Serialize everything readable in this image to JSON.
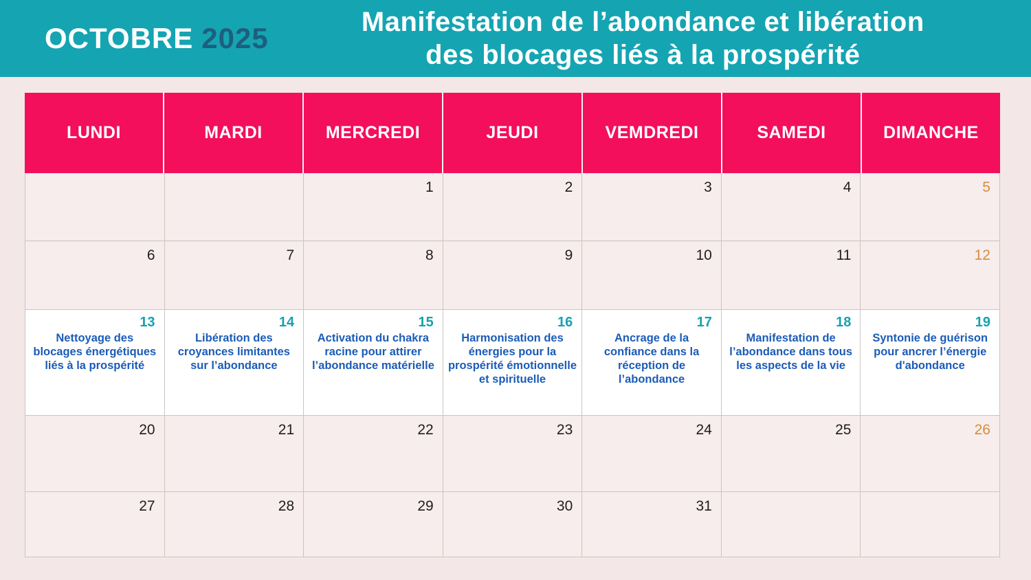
{
  "colors": {
    "banner_teal": "#15a4b2",
    "year_dark_blue": "#1d5f7e",
    "weekday_pink": "#f30f5b",
    "event_text_blue": "#1b5cb7",
    "event_number_teal": "#16a0b0",
    "sunday_orange": "#d98b3e",
    "cell_background": "#f6edec",
    "page_background": "#f3e8e7"
  },
  "header": {
    "month": "OCTOBRE",
    "year": "2025",
    "title_line1": "Manifestation de l’abondance et libération",
    "title_line2": "des blocages liés à la prospérité"
  },
  "calendar": {
    "weekdays": [
      "LUNDI",
      "MARDI",
      "MERCREDI",
      "JEUDI",
      "VEMDREDI",
      "SAMEDI",
      "DIMANCHE"
    ],
    "weeks": [
      {
        "days": [
          {
            "num": ""
          },
          {
            "num": ""
          },
          {
            "num": "1"
          },
          {
            "num": "2"
          },
          {
            "num": "3"
          },
          {
            "num": "4"
          },
          {
            "num": "5"
          }
        ]
      },
      {
        "days": [
          {
            "num": "6"
          },
          {
            "num": "7"
          },
          {
            "num": "8"
          },
          {
            "num": "9"
          },
          {
            "num": "10"
          },
          {
            "num": "11"
          },
          {
            "num": "12"
          }
        ]
      },
      {
        "days": [
          {
            "num": "13",
            "event": "Nettoyage des blocages énergétiques liés à la prospérité"
          },
          {
            "num": "14",
            "event": "Libération des croyances limitantes sur l’abondance"
          },
          {
            "num": "15",
            "event": "Activation du chakra racine pour attirer l’abondance matérielle"
          },
          {
            "num": "16",
            "event": "Harmonisation des énergies pour la prospérité émotionnelle et spirituelle"
          },
          {
            "num": "17",
            "event": "Ancrage de la confiance dans la réception de l’abondance"
          },
          {
            "num": "18",
            "event": "Manifestation de l’abondance dans tous les aspects de la vie"
          },
          {
            "num": "19",
            "event": "Syntonie de guérison pour ancrer l’énergie d'abondance"
          }
        ]
      },
      {
        "days": [
          {
            "num": "20"
          },
          {
            "num": "21"
          },
          {
            "num": "22"
          },
          {
            "num": "23"
          },
          {
            "num": "24"
          },
          {
            "num": "25"
          },
          {
            "num": "26"
          }
        ]
      },
      {
        "days": [
          {
            "num": "27"
          },
          {
            "num": "28"
          },
          {
            "num": "29"
          },
          {
            "num": "30"
          },
          {
            "num": "31"
          },
          {
            "num": ""
          },
          {
            "num": ""
          }
        ]
      }
    ]
  }
}
